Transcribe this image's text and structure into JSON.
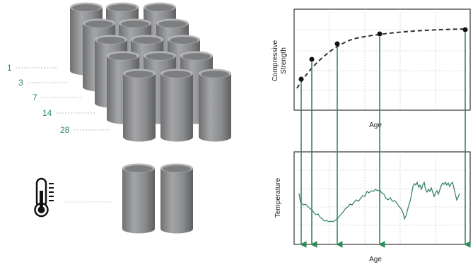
{
  "ages": [
    "1",
    "3",
    "7",
    "14",
    "28"
  ],
  "strength_chart": {
    "ylabel_line1": "Compressive",
    "ylabel_line2": "Strength",
    "xlabel": "Age"
  },
  "temperature_chart": {
    "ylabel": "Temperature",
    "xlabel": "Age"
  },
  "thermometer": {
    "icon": "thermometer-icon"
  },
  "colors": {
    "cylinder": "#8e8f91",
    "arrow": "#2e8b57",
    "grid": "#cccccc",
    "frame": "#333333"
  }
}
